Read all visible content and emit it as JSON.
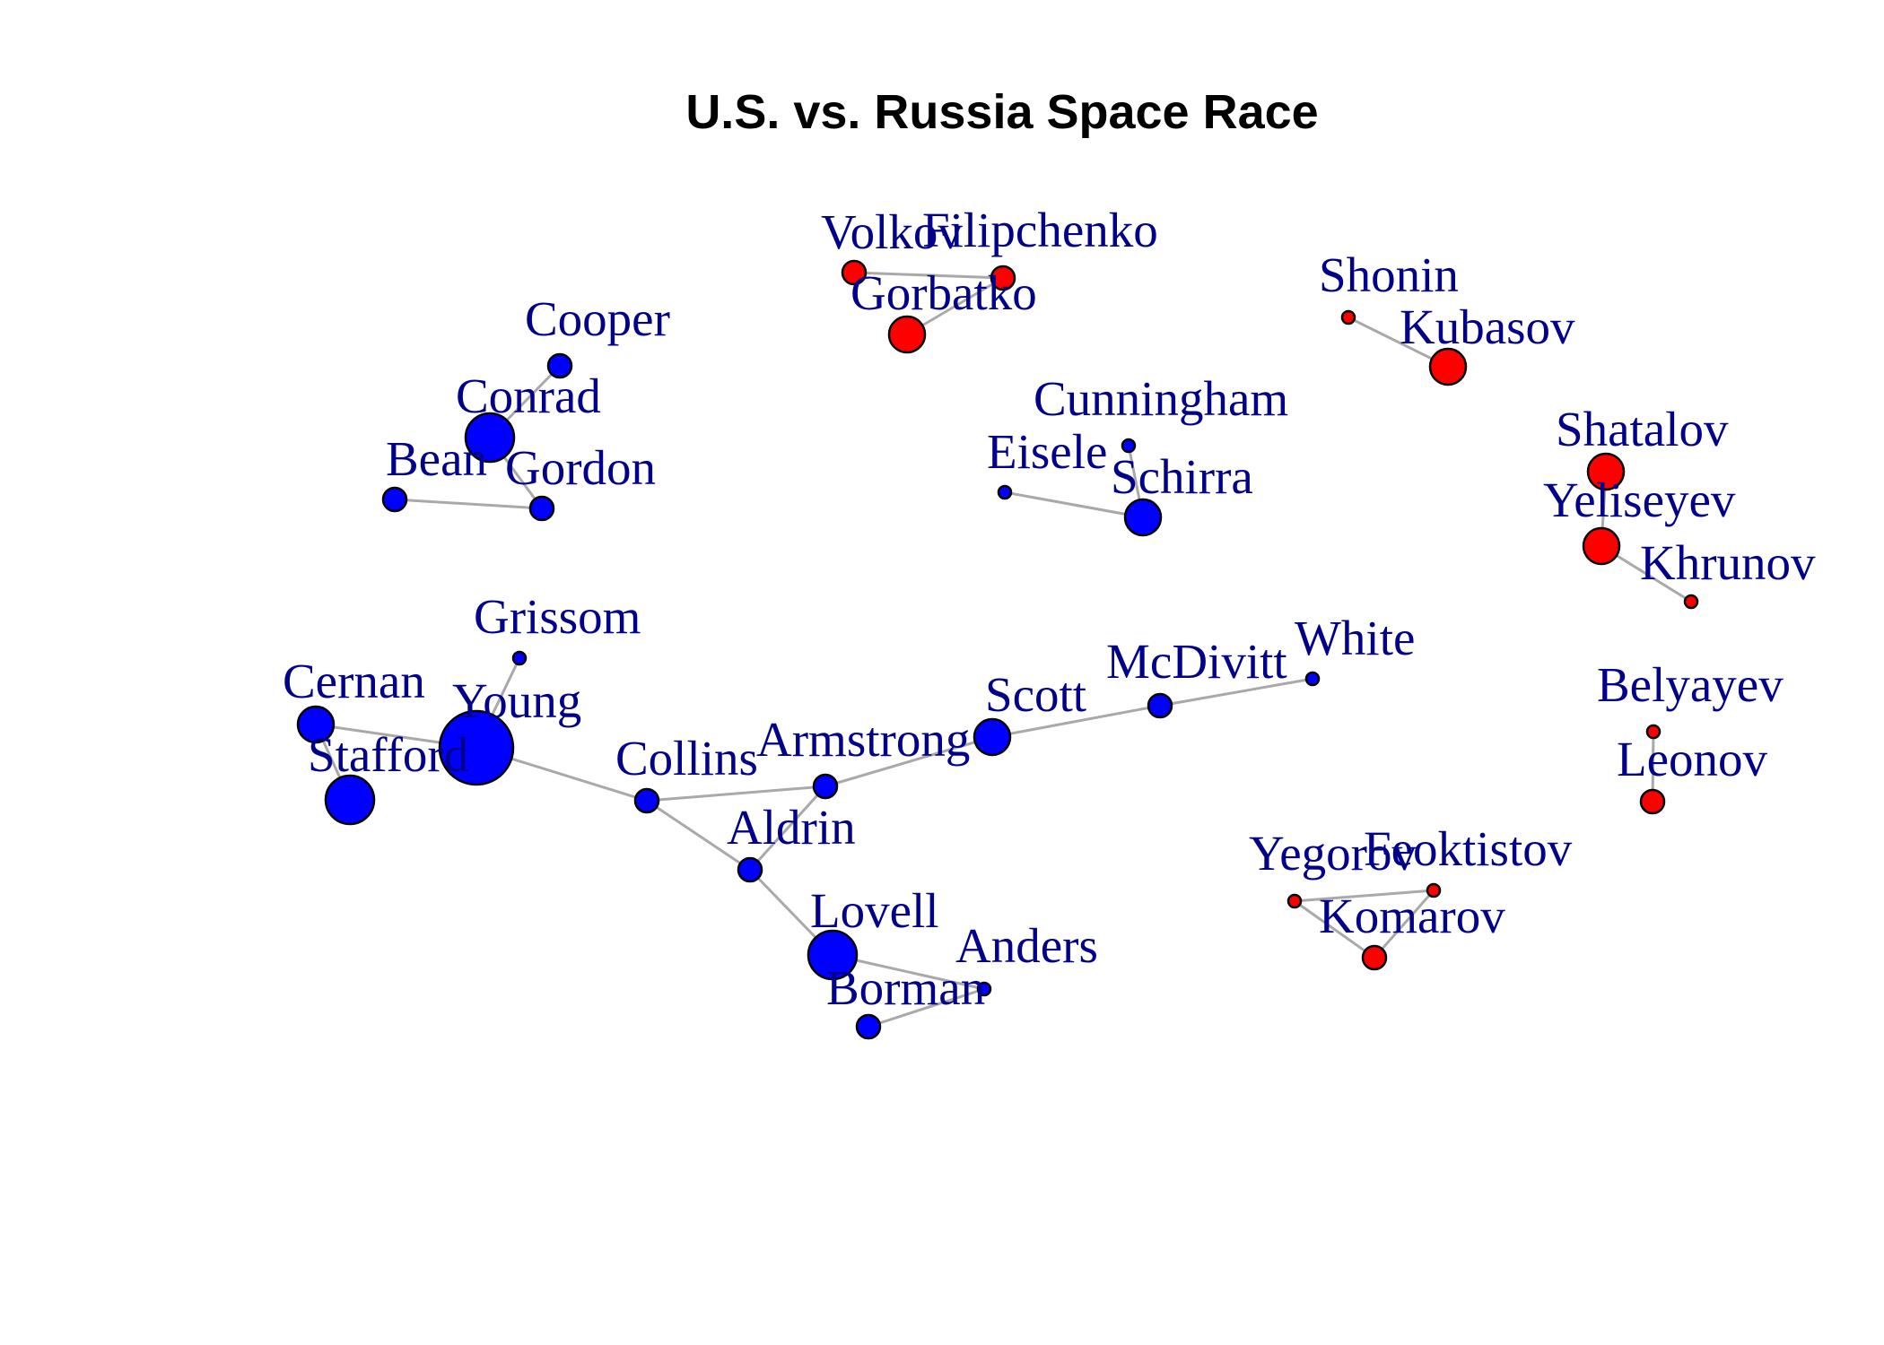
{
  "title": "U.S. vs. Russia Space Race",
  "colors": {
    "us": "#0000ff",
    "russia": "#ff0000",
    "label": "#00008b",
    "edge": "#a9a9a9"
  },
  "nodes": [
    {
      "id": "Volkov",
      "label": "Volkov",
      "group": "russia",
      "size": "small"
    },
    {
      "id": "Filipchenko",
      "label": "Filipchenko",
      "group": "russia",
      "size": "small"
    },
    {
      "id": "Gorbatko",
      "label": "Gorbatko",
      "group": "russia",
      "size": "medium"
    },
    {
      "id": "Shonin",
      "label": "Shonin",
      "group": "russia",
      "size": "tiny"
    },
    {
      "id": "Kubasov",
      "label": "Kubasov",
      "group": "russia",
      "size": "medium"
    },
    {
      "id": "Shatalov",
      "label": "Shatalov",
      "group": "russia",
      "size": "medium"
    },
    {
      "id": "Yeliseyev",
      "label": "Yeliseyev",
      "group": "russia",
      "size": "medium"
    },
    {
      "id": "Khrunov",
      "label": "Khrunov",
      "group": "russia",
      "size": "tiny"
    },
    {
      "id": "Belyayev",
      "label": "Belyayev",
      "group": "russia",
      "size": "tiny"
    },
    {
      "id": "Leonov",
      "label": "Leonov",
      "group": "russia",
      "size": "small"
    },
    {
      "id": "Yegorov",
      "label": "Yegorov",
      "group": "russia",
      "size": "tiny"
    },
    {
      "id": "Feoktistov",
      "label": "Feoktistov",
      "group": "russia",
      "size": "tiny"
    },
    {
      "id": "Komarov",
      "label": "Komarov",
      "group": "russia",
      "size": "small"
    },
    {
      "id": "Cooper",
      "label": "Cooper",
      "group": "us",
      "size": "small"
    },
    {
      "id": "Conrad",
      "label": "Conrad",
      "group": "us",
      "size": "large"
    },
    {
      "id": "Bean",
      "label": "Bean",
      "group": "us",
      "size": "small"
    },
    {
      "id": "Gordon",
      "label": "Gordon",
      "group": "us",
      "size": "small"
    },
    {
      "id": "Cunningham",
      "label": "Cunningham",
      "group": "us",
      "size": "tiny"
    },
    {
      "id": "Eisele",
      "label": "Eisele",
      "group": "us",
      "size": "tiny"
    },
    {
      "id": "Schirra",
      "label": "Schirra",
      "group": "us",
      "size": "medium"
    },
    {
      "id": "Grissom",
      "label": "Grissom",
      "group": "us",
      "size": "tiny"
    },
    {
      "id": "Cernan",
      "label": "Cernan",
      "group": "us",
      "size": "medium"
    },
    {
      "id": "Young",
      "label": "Young",
      "group": "us",
      "size": "xlarge"
    },
    {
      "id": "Stafford",
      "label": "Stafford",
      "group": "us",
      "size": "large"
    },
    {
      "id": "Collins",
      "label": "Collins",
      "group": "us",
      "size": "small"
    },
    {
      "id": "Armstrong",
      "label": "Armstrong",
      "group": "us",
      "size": "small"
    },
    {
      "id": "Aldrin",
      "label": "Aldrin",
      "group": "us",
      "size": "small"
    },
    {
      "id": "Lovell",
      "label": "Lovell",
      "group": "us",
      "size": "large"
    },
    {
      "id": "Anders",
      "label": "Anders",
      "group": "us",
      "size": "tiny"
    },
    {
      "id": "Borman",
      "label": "Borman",
      "group": "us",
      "size": "small"
    },
    {
      "id": "Scott",
      "label": "Scott",
      "group": "us",
      "size": "medium"
    },
    {
      "id": "McDivitt",
      "label": "McDivitt",
      "group": "us",
      "size": "small"
    },
    {
      "id": "White",
      "label": "White",
      "group": "us",
      "size": "tiny"
    }
  ],
  "edges": [
    [
      "Volkov",
      "Filipchenko"
    ],
    [
      "Filipchenko",
      "Gorbatko"
    ],
    [
      "Shonin",
      "Kubasov"
    ],
    [
      "Shatalov",
      "Yeliseyev"
    ],
    [
      "Yeliseyev",
      "Khrunov"
    ],
    [
      "Belyayev",
      "Leonov"
    ],
    [
      "Yegorov",
      "Feoktistov"
    ],
    [
      "Yegorov",
      "Komarov"
    ],
    [
      "Feoktistov",
      "Komarov"
    ],
    [
      "Cooper",
      "Conrad"
    ],
    [
      "Conrad",
      "Gordon"
    ],
    [
      "Bean",
      "Gordon"
    ],
    [
      "Cunningham",
      "Schirra"
    ],
    [
      "Eisele",
      "Schirra"
    ],
    [
      "Grissom",
      "Young"
    ],
    [
      "Cernan",
      "Young"
    ],
    [
      "Cernan",
      "Stafford"
    ],
    [
      "Young",
      "Collins"
    ],
    [
      "Collins",
      "Armstrong"
    ],
    [
      "Collins",
      "Aldrin"
    ],
    [
      "Armstrong",
      "Aldrin"
    ],
    [
      "Armstrong",
      "Scott"
    ],
    [
      "Aldrin",
      "Lovell"
    ],
    [
      "Lovell",
      "Anders"
    ],
    [
      "Anders",
      "Borman"
    ],
    [
      "Scott",
      "McDivitt"
    ],
    [
      "McDivitt",
      "White"
    ]
  ]
}
